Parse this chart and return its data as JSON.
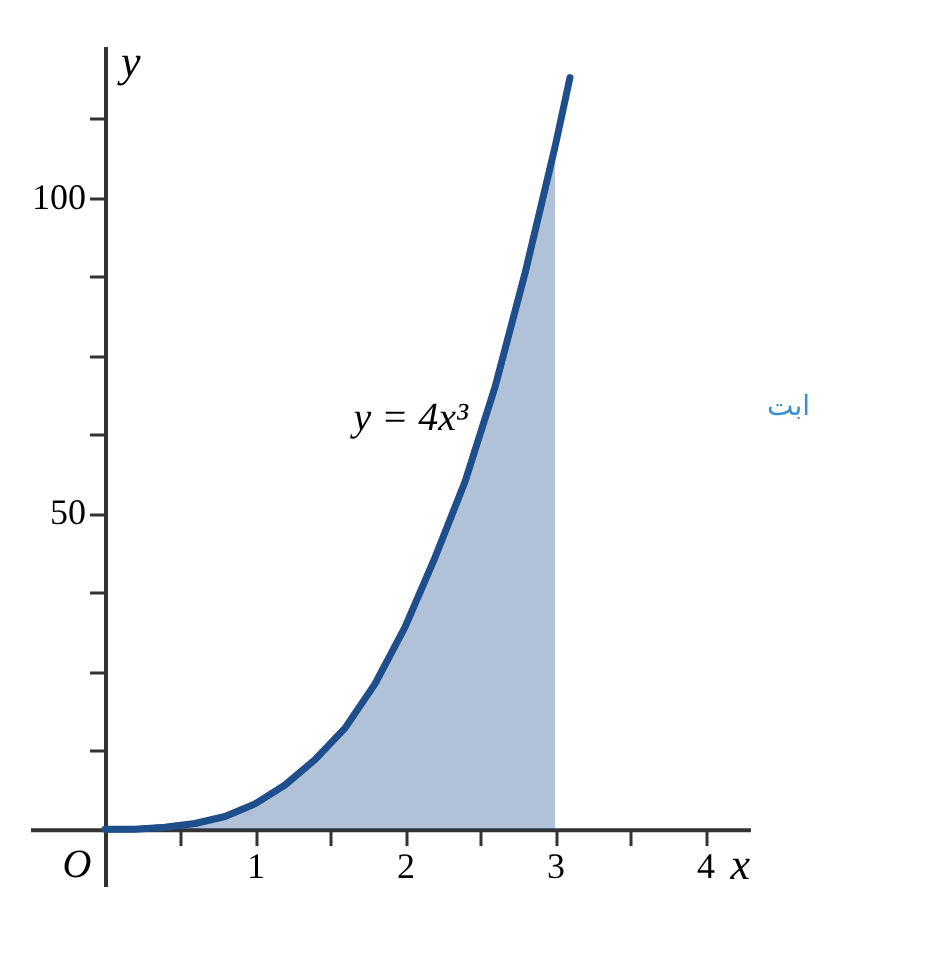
{
  "chart_data": {
    "type": "line",
    "xlabel": "x",
    "ylabel": "y",
    "series": [
      {
        "type": "area",
        "color": "#1f4e8c",
        "x": [
          0,
          0.2,
          0.4,
          0.6,
          0.8,
          1,
          1.2,
          1.4,
          1.6,
          1.8,
          2,
          2.2,
          2.4,
          2.6,
          2.8,
          3
        ],
        "values": [
          0,
          0,
          0.3,
          0.9,
          2,
          4,
          7,
          11,
          16,
          23,
          32,
          43,
          55,
          70,
          88,
          108
        ]
      },
      {
        "color": "#1f4e8c",
        "x": [
          0,
          0.2,
          0.4,
          0.6,
          0.8,
          1,
          1.2,
          1.4,
          1.6,
          1.8,
          2,
          2.2,
          2.4,
          2.6,
          2.8,
          3,
          3.1
        ],
        "values": [
          0,
          0,
          0.3,
          0.9,
          2,
          4,
          7,
          11,
          16,
          23,
          32,
          43,
          55,
          70,
          88,
          108,
          119
        ]
      }
    ],
    "xlim": [
      -0.5,
      4.3
    ],
    "ylim": [
      -9,
      124
    ],
    "xticks": [
      {
        "value": 0.5,
        "label": null
      },
      1,
      {
        "value": 1.5,
        "label": null
      },
      2,
      {
        "value": 2.5,
        "label": null
      },
      3,
      {
        "value": 3.5,
        "label": null
      },
      4
    ],
    "yticks": [
      {
        "value": 12.5,
        "label": null
      },
      {
        "value": 25,
        "label": null
      },
      {
        "value": 37.5,
        "label": null
      },
      50,
      {
        "value": 62.5,
        "label": null
      },
      {
        "value": 75,
        "label": null
      },
      {
        "value": 87.5,
        "label": null
      },
      100,
      {
        "value": 112.5,
        "label": null
      }
    ],
    "annotations": [
      {
        "text": "y = 4x³",
        "x": 2.5,
        "y": 62.5
      },
      {
        "text": "O",
        "x": 0,
        "y": 0
      },
      "ابت"
    ],
    "grid": false,
    "marker": "none",
    "line_style": "solid"
  }
}
